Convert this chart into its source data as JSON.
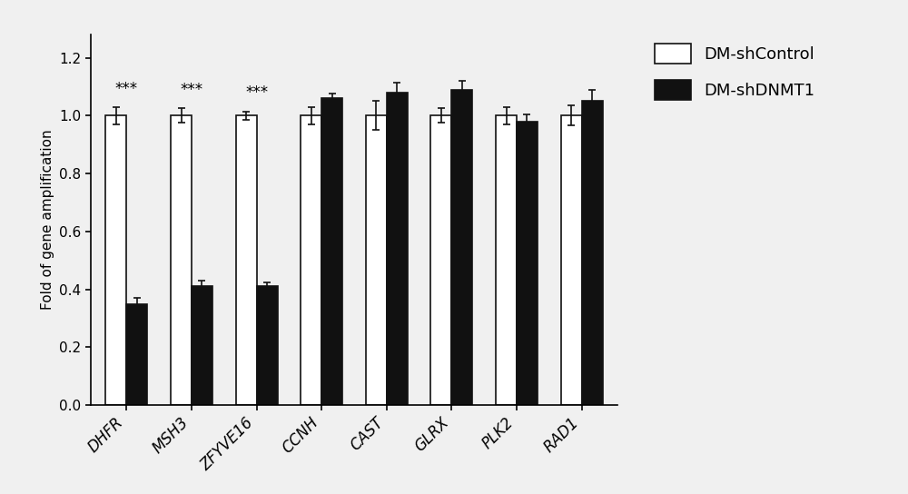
{
  "categories": [
    "DHFR",
    "MSH3",
    "ZFYVE16",
    "CCNH",
    "CAST",
    "GLRX",
    "PLK2",
    "RAD1"
  ],
  "control_values": [
    1.0,
    1.0,
    1.0,
    1.0,
    1.0,
    1.0,
    1.0,
    1.0
  ],
  "treatment_values": [
    0.35,
    0.41,
    0.41,
    1.06,
    1.08,
    1.09,
    0.98,
    1.05
  ],
  "control_errors": [
    0.03,
    0.025,
    0.015,
    0.03,
    0.05,
    0.025,
    0.03,
    0.035
  ],
  "treatment_errors": [
    0.02,
    0.02,
    0.015,
    0.015,
    0.035,
    0.03,
    0.025,
    0.04
  ],
  "significance": [
    "***",
    "***",
    "***",
    "",
    "",
    "",
    "",
    ""
  ],
  "ylabel": "Fold of gene amplification",
  "ylim": [
    0.0,
    1.28
  ],
  "yticks": [
    0.0,
    0.2,
    0.4,
    0.6,
    0.8,
    1.0,
    1.2
  ],
  "legend_labels": [
    "DM-shControl",
    "DM-shDNMT1"
  ],
  "bar_width": 0.32,
  "control_color": "#ffffff",
  "treatment_color": "#111111",
  "edge_color": "#111111",
  "background_color": "#f0f0f0",
  "sig_fontsize": 12,
  "ylabel_fontsize": 11,
  "tick_fontsize": 11,
  "legend_fontsize": 13,
  "xtick_fontsize": 12
}
